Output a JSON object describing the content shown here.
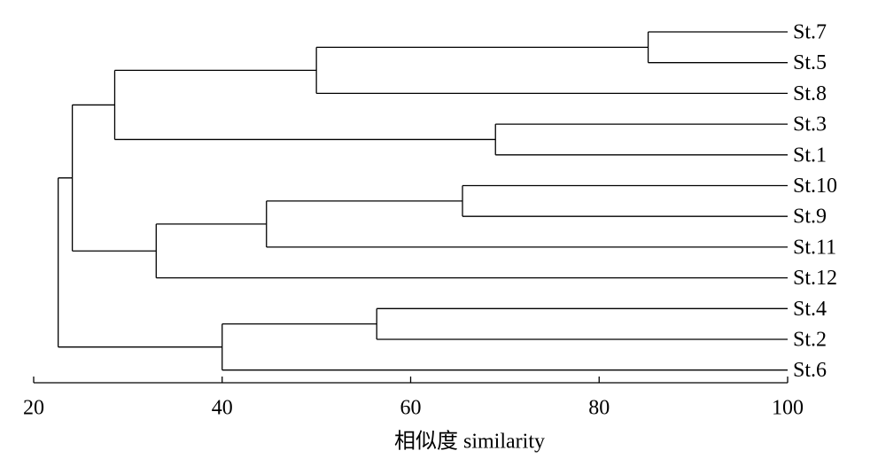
{
  "chart_data": {
    "type": "dendrogram",
    "orientation": "horizontal",
    "x_label": "相似度 similarity",
    "xlim": [
      20,
      100
    ],
    "xticks": [
      20,
      40,
      60,
      80,
      100
    ],
    "color": "#000000",
    "tree": {
      "value": 22.6,
      "children": [
        {
          "value": 24.1,
          "children": [
            {
              "value": 28.6,
              "children": [
                {
                  "value": 50.0,
                  "children": [
                    {
                      "value": 85.2,
                      "children": [
                        "St.7",
                        "St.5"
                      ]
                    },
                    "St.8"
                  ]
                },
                {
                  "value": 69.0,
                  "children": [
                    "St.3",
                    "St.1"
                  ]
                }
              ]
            },
            {
              "value": 33.0,
              "children": [
                {
                  "value": 44.7,
                  "children": [
                    {
                      "value": 65.5,
                      "children": [
                        "St.10",
                        "St.9"
                      ]
                    },
                    "St.11"
                  ]
                },
                "St.12"
              ]
            }
          ]
        },
        {
          "value": 40.0,
          "children": [
            {
              "value": 56.4,
              "children": [
                "St.4",
                "St.2"
              ]
            },
            "St.6"
          ]
        }
      ]
    }
  }
}
